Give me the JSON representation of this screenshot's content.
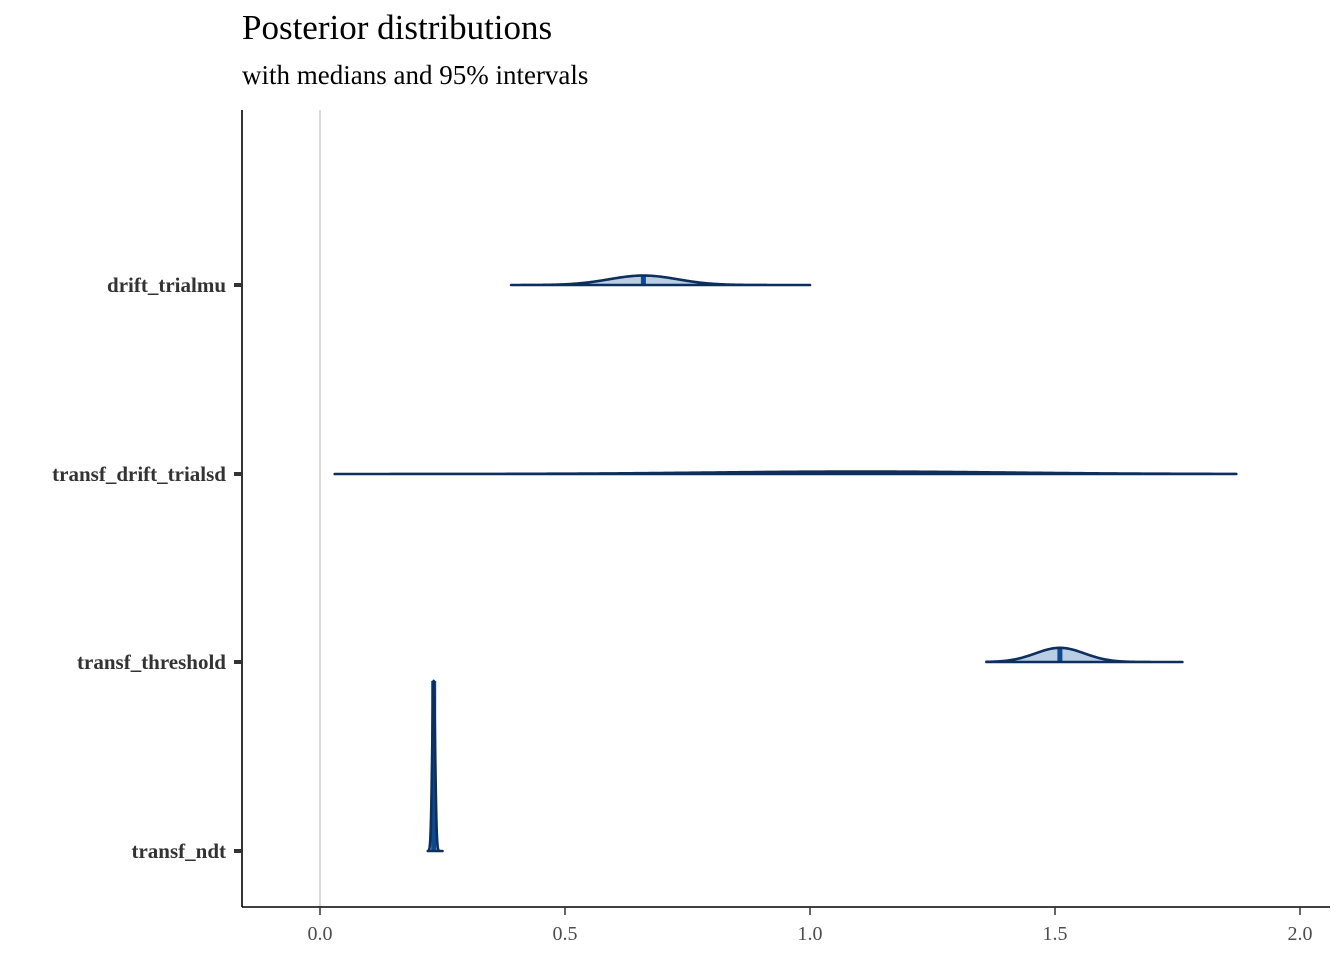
{
  "chart_data": {
    "type": "ridgeline",
    "title": "Posterior distributions",
    "subtitle": "with medians and 95% intervals",
    "xlabel": "",
    "ylabel": "",
    "xlim": [
      -0.16,
      2.05
    ],
    "x_ticks": [
      0.0,
      0.5,
      1.0,
      1.5,
      2.0
    ],
    "x_tick_labels": [
      "0.0",
      "0.5",
      "1.0",
      "1.5",
      "2.0"
    ],
    "reference_line_x": 0,
    "grid": false,
    "colors": {
      "line": "#0d2f5e",
      "fill": "#b9cde3",
      "median": "#0d4a8f",
      "ref_line": "#d9d9d9"
    },
    "series": [
      {
        "name": "drift_trialmu",
        "median": 0.66,
        "mean": 0.66,
        "sd": 0.07,
        "lo95": 0.53,
        "hi95": 0.8,
        "min": 0.39,
        "max": 1.0,
        "rel_height": 0.05
      },
      {
        "name": "transf_drift_trialsd",
        "median": 1.1,
        "mean": 1.1,
        "sd": 0.3,
        "lo95": 0.5,
        "hi95": 1.7,
        "min": 0.03,
        "max": 1.87,
        "rel_height": 0.013
      },
      {
        "name": "transf_threshold",
        "median": 1.51,
        "mean": 1.51,
        "sd": 0.05,
        "lo95": 1.41,
        "hi95": 1.61,
        "min": 1.36,
        "max": 1.76,
        "rel_height": 0.075
      },
      {
        "name": "transf_ndt",
        "median": 0.232,
        "mean": 0.232,
        "sd": 0.003,
        "lo95": 0.226,
        "hi95": 0.238,
        "min": 0.22,
        "max": 0.25,
        "rel_height": 0.9
      }
    ]
  }
}
